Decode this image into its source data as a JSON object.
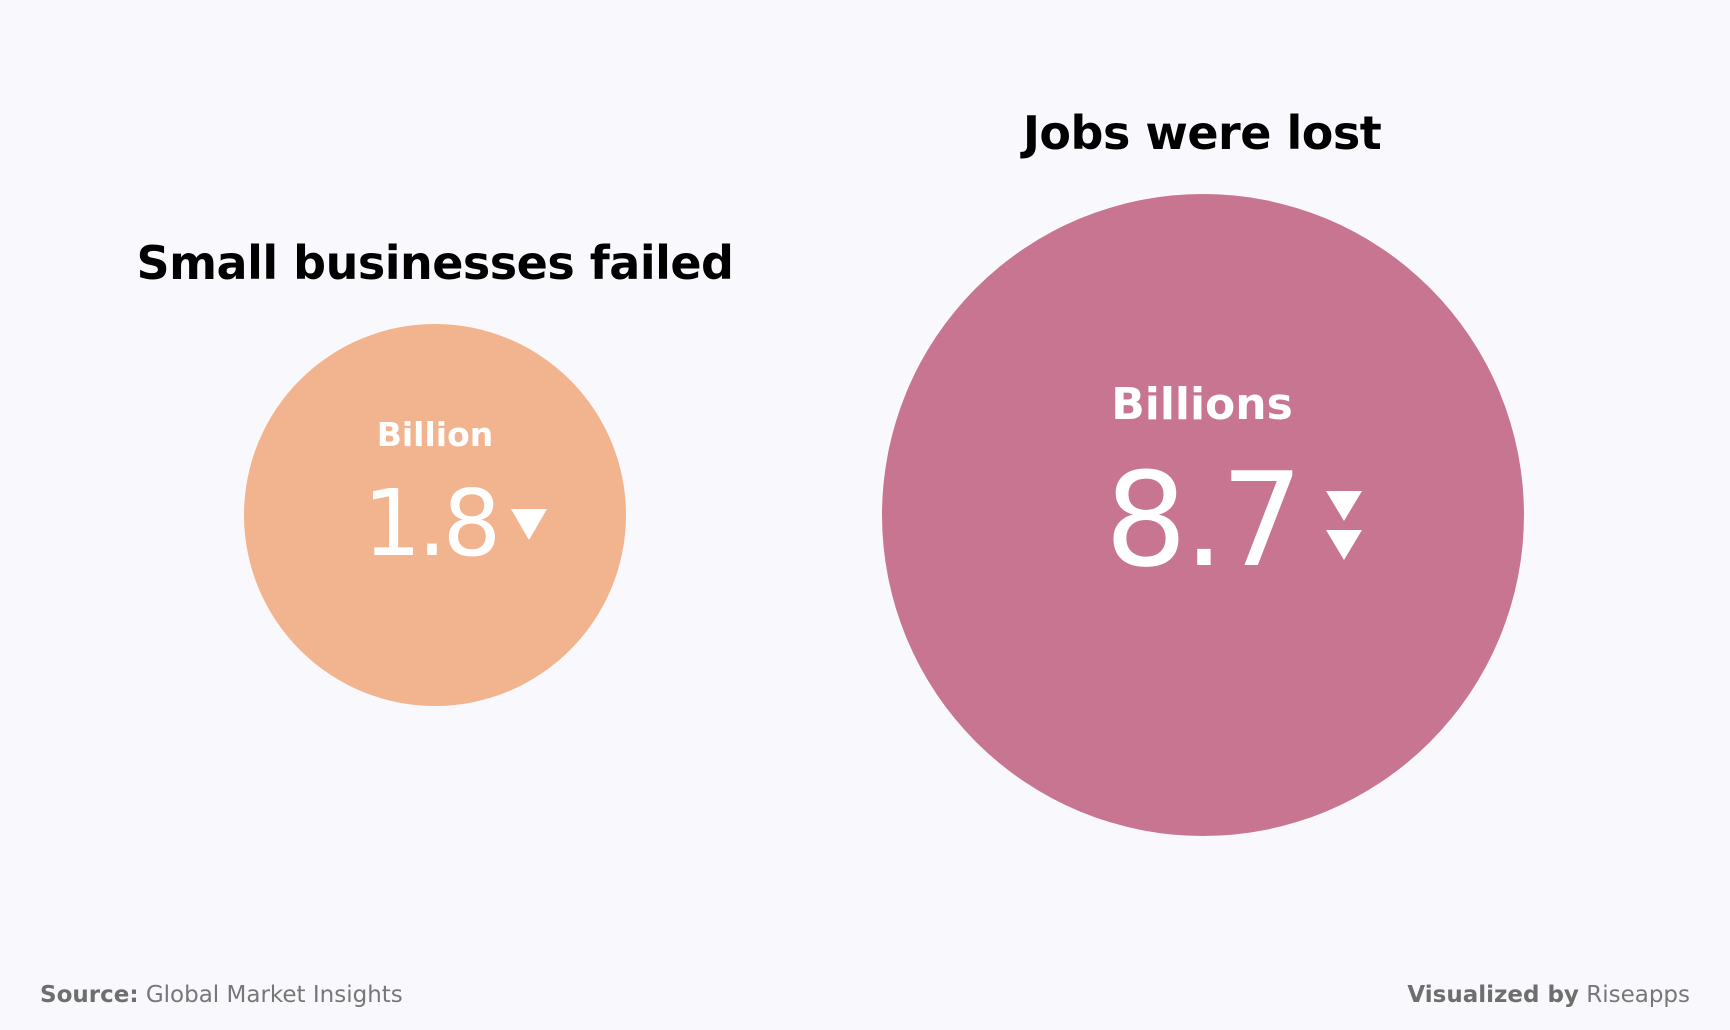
{
  "chart_data": {
    "type": "bubble",
    "items": [
      {
        "title": "Small businesses failed",
        "unit": "Billion",
        "value": 1.8,
        "value_text": "1.8",
        "color": "#f2b48f",
        "indicator": "down",
        "indicator_count": 1
      },
      {
        "title": "Jobs were lost",
        "unit": "Billions",
        "value": 8.7,
        "value_text": "8.7",
        "color": "#c77591",
        "indicator": "down",
        "indicator_count": 2
      }
    ]
  },
  "footer": {
    "source_label": "Source:",
    "source_value": "Global Market Insights",
    "credit_label": "Visualized by",
    "credit_value": "Riseapps"
  },
  "colors": {
    "background": "#f9f9fd",
    "text": "#000000",
    "footer_text": "#6e6e6e"
  },
  "icons": {
    "indicator": "triangle-down-icon"
  }
}
